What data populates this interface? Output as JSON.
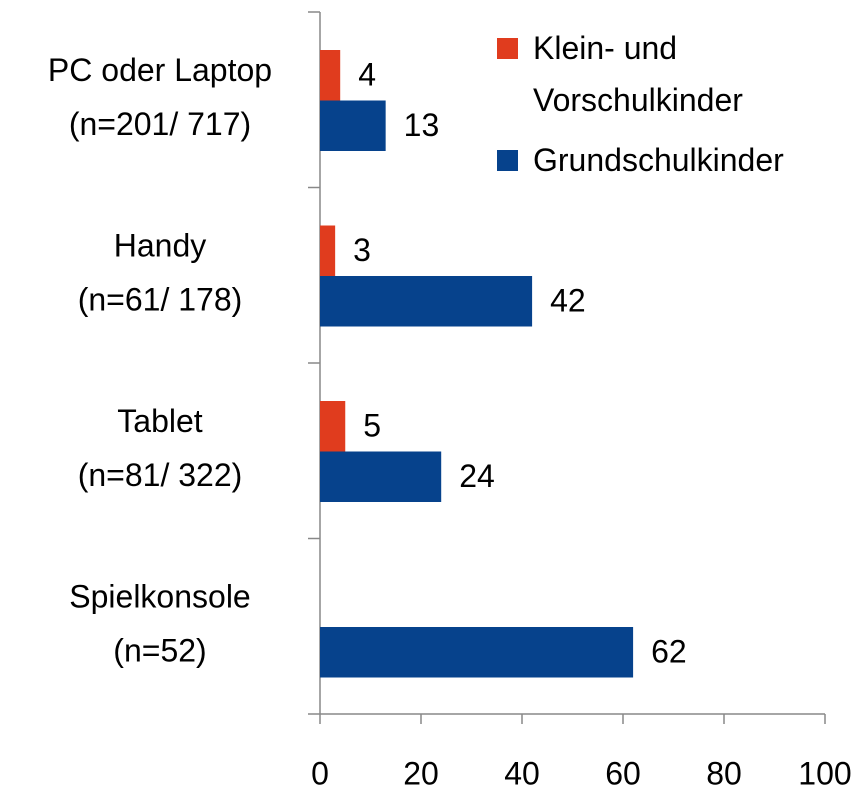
{
  "chart_data": {
    "type": "bar",
    "orientation": "horizontal",
    "categories": [
      [
        "PC oder Laptop",
        "(n=201/ 717)"
      ],
      [
        "Handy",
        "(n=61/ 178)"
      ],
      [
        "Tablet",
        "(n=81/ 322)"
      ],
      [
        "Spielkonsole",
        "(n=52)"
      ]
    ],
    "series": [
      {
        "name": "Klein- und Vorschulkinder",
        "color": "#e03c1e",
        "values": [
          4,
          3,
          5,
          null
        ]
      },
      {
        "name": "Grundschulkinder",
        "color": "#06428c",
        "values": [
          13,
          42,
          24,
          62
        ]
      }
    ],
    "xlim": [
      0,
      100
    ],
    "xticks": [
      0,
      20,
      40,
      60,
      80,
      100
    ],
    "grid": false,
    "legend": "top-right"
  }
}
